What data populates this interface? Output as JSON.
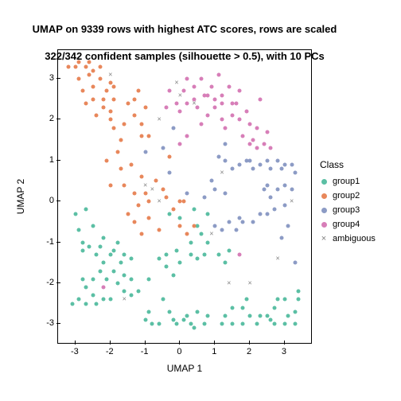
{
  "chart": {
    "type": "scatter",
    "title_line1": "UMAP on 9339 rows with highest ATC scores, rows are scaled",
    "title_line2": "322/342 confident samples (silhouette > 0.5), with 10 PCs",
    "title_fontsize": 13,
    "xlabel": "UMAP 1",
    "ylabel": "UMAP 2",
    "label_fontsize": 12,
    "tick_fontsize": 11,
    "xlim": [
      -3.5,
      3.8
    ],
    "ylim": [
      -3.5,
      3.7
    ],
    "xticks": [
      -3,
      -2,
      -1,
      0,
      1,
      2,
      3
    ],
    "yticks": [
      -3,
      -2,
      -1,
      0,
      1,
      2,
      3
    ],
    "background_color": "#ffffff",
    "border_color": "#000000",
    "point_size": 5,
    "marker_style_groups": "circle",
    "marker_style_ambiguous": "x",
    "legend": {
      "title": "Class",
      "position": "right",
      "items": [
        {
          "label": "group1",
          "color": "#5bbfa4",
          "marker": "circle"
        },
        {
          "label": "group2",
          "color": "#e8875b",
          "marker": "circle"
        },
        {
          "label": "group3",
          "color": "#8c9bc5",
          "marker": "circle"
        },
        {
          "label": "group4",
          "color": "#d77eb8",
          "marker": "circle"
        },
        {
          "label": "ambiguous",
          "color": "#808080",
          "marker": "x"
        }
      ]
    },
    "colors": {
      "group1": "#5bbfa4",
      "group2": "#e8875b",
      "group3": "#8c9bc5",
      "group4": "#d77eb8",
      "ambiguous": "#808080"
    },
    "series": {
      "group1": [
        [
          -3.0,
          -0.3
        ],
        [
          -2.9,
          -0.7
        ],
        [
          -2.8,
          -1.0
        ],
        [
          -2.8,
          -1.2
        ],
        [
          -2.7,
          -0.2
        ],
        [
          -2.6,
          -1.1
        ],
        [
          -2.5,
          -0.6
        ],
        [
          -2.3,
          -1.1
        ],
        [
          -2.2,
          -0.9
        ],
        [
          -2.4,
          -1.3
        ],
        [
          -2.0,
          -1.3
        ],
        [
          -1.9,
          -1.2
        ],
        [
          -1.8,
          -1.0
        ],
        [
          -1.6,
          -1.3
        ],
        [
          -1.7,
          -1.5
        ],
        [
          -1.4,
          -1.4
        ],
        [
          -2.2,
          -1.5
        ],
        [
          -2.3,
          -1.7
        ],
        [
          -2.1,
          -1.9
        ],
        [
          -1.9,
          -1.7
        ],
        [
          -1.8,
          -2.0
        ],
        [
          -1.6,
          -1.8
        ],
        [
          -1.4,
          -1.9
        ],
        [
          -1.6,
          -2.2
        ],
        [
          -1.4,
          -2.3
        ],
        [
          -2.0,
          -2.4
        ],
        [
          -2.2,
          -2.4
        ],
        [
          -2.4,
          -2.5
        ],
        [
          -2.5,
          -2.3
        ],
        [
          -2.7,
          -2.5
        ],
        [
          -2.9,
          -2.4
        ],
        [
          -2.7,
          -2.1
        ],
        [
          -2.5,
          -1.9
        ],
        [
          -2.8,
          -1.9
        ],
        [
          -3.1,
          -2.5
        ],
        [
          -1.2,
          -2.2
        ],
        [
          -1.0,
          -2.9
        ],
        [
          -0.9,
          -2.7
        ],
        [
          -0.8,
          -3.0
        ],
        [
          -0.6,
          -3.0
        ],
        [
          -0.5,
          -2.4
        ],
        [
          -0.3,
          -2.7
        ],
        [
          -0.2,
          -2.9
        ],
        [
          -0.1,
          -3.0
        ],
        [
          0.1,
          -2.9
        ],
        [
          0.2,
          -2.8
        ],
        [
          0.3,
          -3.0
        ],
        [
          0.5,
          -2.7
        ],
        [
          0.4,
          -3.1
        ],
        [
          0.7,
          -3.0
        ],
        [
          0.8,
          -2.8
        ],
        [
          -0.9,
          -1.9
        ],
        [
          -0.6,
          -1.4
        ],
        [
          -0.4,
          -1.6
        ],
        [
          -0.2,
          -1.8
        ],
        [
          0.0,
          -1.5
        ],
        [
          0.3,
          -1.3
        ],
        [
          -0.4,
          -1.3
        ],
        [
          -0.1,
          -1.2
        ],
        [
          0.3,
          -1.0
        ],
        [
          0.6,
          -0.8
        ],
        [
          0.8,
          -1.0
        ],
        [
          0.7,
          -1.3
        ],
        [
          0.5,
          -1.4
        ],
        [
          0.5,
          -0.6
        ],
        [
          0.4,
          -0.2
        ],
        [
          0.0,
          -0.4
        ],
        [
          -0.3,
          -0.3
        ],
        [
          0.8,
          -0.3
        ],
        [
          1.2,
          -3.0
        ],
        [
          1.3,
          -2.8
        ],
        [
          1.5,
          -3.0
        ],
        [
          1.5,
          -2.6
        ],
        [
          1.8,
          -3.0
        ],
        [
          1.8,
          -2.6
        ],
        [
          1.9,
          -2.4
        ],
        [
          2.0,
          -2.8
        ],
        [
          2.2,
          -3.0
        ],
        [
          2.3,
          -2.8
        ],
        [
          2.5,
          -2.8
        ],
        [
          2.6,
          -2.9
        ],
        [
          2.7,
          -3.0
        ],
        [
          3.0,
          -3.0
        ],
        [
          3.1,
          -2.8
        ],
        [
          3.3,
          -3.0
        ],
        [
          3.3,
          -2.7
        ],
        [
          3.4,
          -2.4
        ],
        [
          3.4,
          -2.2
        ],
        [
          3.0,
          -2.4
        ],
        [
          2.8,
          -2.4
        ],
        [
          2.7,
          -2.6
        ],
        [
          1.1,
          -1.3
        ],
        [
          1.3,
          -1.5
        ],
        [
          1.4,
          -1.2
        ]
      ],
      "group2": [
        [
          -3.2,
          3.3
        ],
        [
          -3.0,
          3.3
        ],
        [
          -2.9,
          3.0
        ],
        [
          -2.9,
          3.4
        ],
        [
          -2.7,
          3.3
        ],
        [
          -2.6,
          3.1
        ],
        [
          -2.6,
          3.4
        ],
        [
          -2.5,
          3.2
        ],
        [
          -2.3,
          3.3
        ],
        [
          -2.5,
          2.8
        ],
        [
          -2.8,
          2.7
        ],
        [
          -2.7,
          2.4
        ],
        [
          -2.5,
          2.5
        ],
        [
          -2.3,
          3.0
        ],
        [
          -2.2,
          2.5
        ],
        [
          -2.2,
          2.3
        ],
        [
          -2.0,
          2.9
        ],
        [
          -1.9,
          2.8
        ],
        [
          -1.9,
          2.5
        ],
        [
          -2.0,
          2.2
        ],
        [
          -2.0,
          2.0
        ],
        [
          -1.9,
          1.8
        ],
        [
          -1.7,
          1.5
        ],
        [
          -1.8,
          1.2
        ],
        [
          -2.1,
          1.0
        ],
        [
          -1.7,
          0.8
        ],
        [
          -1.6,
          0.4
        ],
        [
          -2.0,
          0.4
        ],
        [
          -1.5,
          2.4
        ],
        [
          -1.3,
          2.5
        ],
        [
          -1.2,
          2.7
        ],
        [
          -1.3,
          2.1
        ],
        [
          -1.1,
          1.9
        ],
        [
          -1.6,
          1.9
        ],
        [
          -1.0,
          2.3
        ],
        [
          -1.1,
          1.6
        ],
        [
          -0.9,
          1.6
        ],
        [
          -1.4,
          0.9
        ],
        [
          -1.1,
          0.6
        ],
        [
          -1.3,
          0.2
        ],
        [
          -1.0,
          0.2
        ],
        [
          -1.2,
          -0.1
        ],
        [
          -0.9,
          -0.4
        ],
        [
          -1.5,
          -0.3
        ],
        [
          -0.7,
          0.5
        ],
        [
          -0.5,
          0.3
        ],
        [
          -1.1,
          -0.8
        ],
        [
          -1.3,
          -0.5
        ],
        [
          -0.9,
          0.0
        ],
        [
          -0.6,
          -0.7
        ],
        [
          -0.2,
          -0.2
        ],
        [
          -0.4,
          0.1
        ],
        [
          0.0,
          0.0
        ],
        [
          0.1,
          -0.0
        ],
        [
          -0.0,
          -0.6
        ],
        [
          0.4,
          -0.6
        ],
        [
          0.2,
          -0.8
        ],
        [
          -0.3,
          1.1
        ],
        [
          -2.1,
          2.7
        ],
        [
          -2.4,
          2.1
        ]
      ],
      "group3": [
        [
          1.1,
          1.1
        ],
        [
          1.3,
          1.0
        ],
        [
          1.5,
          0.8
        ],
        [
          1.7,
          0.9
        ],
        [
          1.9,
          1.0
        ],
        [
          2.0,
          1.0
        ],
        [
          2.1,
          0.8
        ],
        [
          2.3,
          0.9
        ],
        [
          2.6,
          0.8
        ],
        [
          2.5,
          1.0
        ],
        [
          2.8,
          1.0
        ],
        [
          2.9,
          0.8
        ],
        [
          3.0,
          0.9
        ],
        [
          3.2,
          0.9
        ],
        [
          3.3,
          0.7
        ],
        [
          2.5,
          0.4
        ],
        [
          2.4,
          0.3
        ],
        [
          2.6,
          0.1
        ],
        [
          2.8,
          0.3
        ],
        [
          3.0,
          0.4
        ],
        [
          3.2,
          0.3
        ],
        [
          3.0,
          -0.1
        ],
        [
          2.7,
          -0.2
        ],
        [
          2.5,
          -0.3
        ],
        [
          2.3,
          -0.3
        ],
        [
          2.1,
          -0.5
        ],
        [
          1.8,
          -0.5
        ],
        [
          1.6,
          -0.7
        ],
        [
          1.7,
          -0.4
        ],
        [
          1.4,
          -0.5
        ],
        [
          1.2,
          -0.7
        ],
        [
          1.0,
          -0.6
        ],
        [
          1.3,
          0.2
        ],
        [
          0.9,
          0.5
        ],
        [
          1.3,
          1.4
        ],
        [
          1.0,
          0.3
        ],
        [
          2.9,
          -0.9
        ],
        [
          3.3,
          -1.5
        ],
        [
          3.1,
          -0.6
        ],
        [
          -0.2,
          1.8
        ],
        [
          -0.5,
          1.3
        ],
        [
          -0.3,
          0.7
        ],
        [
          0.2,
          0.2
        ],
        [
          0.7,
          0.1
        ],
        [
          -1.0,
          1.2
        ]
      ],
      "group4": [
        [
          -0.3,
          2.7
        ],
        [
          -0.1,
          2.4
        ],
        [
          -0.0,
          2.2
        ],
        [
          0.1,
          2.7
        ],
        [
          0.2,
          2.4
        ],
        [
          0.2,
          3.0
        ],
        [
          0.4,
          2.8
        ],
        [
          0.4,
          2.5
        ],
        [
          0.6,
          3.0
        ],
        [
          0.5,
          2.3
        ],
        [
          0.6,
          1.9
        ],
        [
          0.7,
          2.6
        ],
        [
          0.8,
          2.6
        ],
        [
          0.8,
          2.1
        ],
        [
          0.9,
          2.8
        ],
        [
          1.0,
          2.5
        ],
        [
          1.0,
          2.3
        ],
        [
          1.1,
          3.1
        ],
        [
          1.2,
          2.6
        ],
        [
          1.2,
          2.4
        ],
        [
          1.2,
          2.0
        ],
        [
          1.4,
          2.8
        ],
        [
          1.3,
          1.8
        ],
        [
          1.5,
          2.4
        ],
        [
          1.5,
          2.1
        ],
        [
          1.6,
          2.4
        ],
        [
          1.7,
          2.7
        ],
        [
          1.7,
          2.0
        ],
        [
          1.8,
          1.6
        ],
        [
          1.9,
          2.2
        ],
        [
          2.0,
          1.9
        ],
        [
          2.0,
          1.4
        ],
        [
          2.1,
          1.5
        ],
        [
          2.2,
          1.8
        ],
        [
          2.2,
          1.3
        ],
        [
          2.3,
          2.5
        ],
        [
          2.4,
          1.4
        ],
        [
          2.5,
          1.7
        ],
        [
          2.6,
          1.3
        ],
        [
          0.2,
          1.6
        ],
        [
          0.0,
          1.4
        ],
        [
          -0.4,
          2.3
        ],
        [
          -2.2,
          -2.1
        ],
        [
          1.7,
          -1.3
        ]
      ],
      "ambiguous": [
        [
          -2.0,
          3.1
        ],
        [
          -0.6,
          2.0
        ],
        [
          -0.1,
          2.9
        ],
        [
          0.4,
          2.4
        ],
        [
          0.0,
          2.6
        ],
        [
          -0.8,
          0.3
        ],
        [
          -1.0,
          0.4
        ],
        [
          -0.6,
          0.0
        ],
        [
          1.2,
          0.7
        ],
        [
          2.0,
          -2.0
        ],
        [
          2.8,
          -1.4
        ],
        [
          1.4,
          -2.0
        ],
        [
          -1.6,
          -2.4
        ],
        [
          3.2,
          0.0
        ],
        [
          0.9,
          -0.8
        ]
      ]
    }
  }
}
